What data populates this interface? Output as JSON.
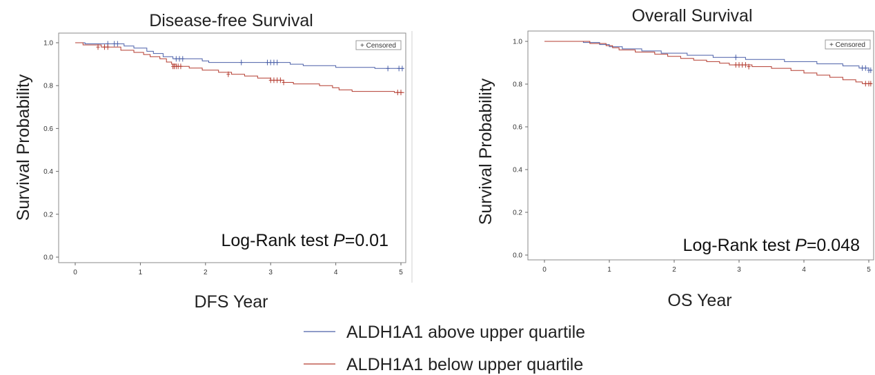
{
  "legend": {
    "entries": [
      {
        "label": "ALDH1A1 above upper quartile",
        "color": "#4a5fa8"
      },
      {
        "label": "ALDH1A1 below upper quartile",
        "color": "#b33a2e"
      }
    ]
  },
  "chart_data": [
    {
      "type": "line",
      "title": "Disease-free Survival",
      "xlabel": "DFS Year",
      "ylabel": "Survival Probability",
      "xlim": [
        0,
        5
      ],
      "ylim": [
        0,
        1
      ],
      "xticks": [
        "0",
        "1",
        "2",
        "3",
        "4",
        "5"
      ],
      "yticks": [
        "0.0",
        "0.2",
        "0.4",
        "0.6",
        "0.8",
        "1.0"
      ],
      "censor_legend": "+ Censored",
      "annotation": {
        "prefix": "Log-Rank test ",
        "p": "P",
        "value": "=0.01"
      },
      "series": [
        {
          "color": "#4a5fa8",
          "steps": [
            [
              0,
              1.0
            ],
            [
              0.15,
              0.995
            ],
            [
              0.75,
              0.985
            ],
            [
              0.9,
              0.975
            ],
            [
              1.1,
              0.96
            ],
            [
              1.2,
              0.95
            ],
            [
              1.35,
              0.935
            ],
            [
              1.5,
              0.925
            ],
            [
              1.95,
              0.915
            ],
            [
              2.05,
              0.908
            ],
            [
              3.3,
              0.9
            ],
            [
              3.5,
              0.893
            ],
            [
              4.0,
              0.885
            ],
            [
              4.6,
              0.88
            ],
            [
              5.05,
              0.88
            ]
          ],
          "censors": [
            [
              0.5,
              0.995
            ],
            [
              0.6,
              0.995
            ],
            [
              0.65,
              0.995
            ],
            [
              1.55,
              0.925
            ],
            [
              1.6,
              0.925
            ],
            [
              1.65,
              0.925
            ],
            [
              2.55,
              0.908
            ],
            [
              2.95,
              0.908
            ],
            [
              3.0,
              0.908
            ],
            [
              3.05,
              0.908
            ],
            [
              3.1,
              0.908
            ],
            [
              4.8,
              0.88
            ],
            [
              4.97,
              0.88
            ],
            [
              5.02,
              0.88
            ]
          ]
        },
        {
          "color": "#b33a2e",
          "steps": [
            [
              0,
              1.0
            ],
            [
              0.12,
              0.99
            ],
            [
              0.4,
              0.98
            ],
            [
              0.7,
              0.965
            ],
            [
              0.9,
              0.955
            ],
            [
              1.05,
              0.945
            ],
            [
              1.15,
              0.935
            ],
            [
              1.3,
              0.925
            ],
            [
              1.4,
              0.91
            ],
            [
              1.48,
              0.9
            ],
            [
              1.55,
              0.89
            ],
            [
              1.75,
              0.882
            ],
            [
              1.95,
              0.872
            ],
            [
              2.2,
              0.862
            ],
            [
              2.4,
              0.853
            ],
            [
              2.6,
              0.845
            ],
            [
              2.8,
              0.835
            ],
            [
              3.0,
              0.825
            ],
            [
              3.2,
              0.815
            ],
            [
              3.35,
              0.808
            ],
            [
              3.75,
              0.8
            ],
            [
              3.95,
              0.79
            ],
            [
              4.05,
              0.78
            ],
            [
              4.25,
              0.773
            ],
            [
              4.9,
              0.768
            ],
            [
              5.05,
              0.768
            ]
          ],
          "censors": [
            [
              0.35,
              0.98
            ],
            [
              0.45,
              0.98
            ],
            [
              0.5,
              0.98
            ],
            [
              1.5,
              0.89
            ],
            [
              1.52,
              0.89
            ],
            [
              1.55,
              0.89
            ],
            [
              1.58,
              0.89
            ],
            [
              1.62,
              0.89
            ],
            [
              2.35,
              0.853
            ],
            [
              3.0,
              0.825
            ],
            [
              3.05,
              0.825
            ],
            [
              3.1,
              0.825
            ],
            [
              3.15,
              0.825
            ],
            [
              3.2,
              0.815
            ],
            [
              4.95,
              0.768
            ],
            [
              5.0,
              0.768
            ]
          ]
        }
      ]
    },
    {
      "type": "line",
      "title": "Overall Survival",
      "xlabel": "OS Year",
      "ylabel": "Survival Probability",
      "xlim": [
        0,
        5
      ],
      "ylim": [
        0,
        1
      ],
      "xticks": [
        "0",
        "1",
        "2",
        "3",
        "4",
        "5"
      ],
      "yticks": [
        "0.0",
        "0.2",
        "0.4",
        "0.6",
        "0.8",
        "1.0"
      ],
      "censor_legend": "+ Censored",
      "annotation": {
        "prefix": "Log-Rank test ",
        "p": "P",
        "value": "=0.048"
      },
      "series": [
        {
          "color": "#4a5fa8",
          "steps": [
            [
              0,
              1.0
            ],
            [
              0.6,
              0.995
            ],
            [
              0.85,
              0.985
            ],
            [
              1.0,
              0.975
            ],
            [
              1.2,
              0.965
            ],
            [
              1.5,
              0.955
            ],
            [
              1.8,
              0.945
            ],
            [
              2.2,
              0.935
            ],
            [
              2.6,
              0.925
            ],
            [
              3.1,
              0.915
            ],
            [
              3.7,
              0.905
            ],
            [
              4.2,
              0.895
            ],
            [
              4.6,
              0.885
            ],
            [
              4.85,
              0.875
            ],
            [
              5.0,
              0.865
            ],
            [
              5.05,
              0.865
            ]
          ],
          "censors": [
            [
              2.95,
              0.925
            ],
            [
              4.9,
              0.875
            ],
            [
              4.95,
              0.875
            ],
            [
              5.0,
              0.865
            ],
            [
              5.03,
              0.865
            ]
          ]
        },
        {
          "color": "#b33a2e",
          "steps": [
            [
              0,
              1.0
            ],
            [
              0.7,
              0.99
            ],
            [
              0.95,
              0.98
            ],
            [
              1.05,
              0.97
            ],
            [
              1.15,
              0.96
            ],
            [
              1.4,
              0.95
            ],
            [
              1.7,
              0.94
            ],
            [
              1.9,
              0.93
            ],
            [
              2.1,
              0.92
            ],
            [
              2.3,
              0.912
            ],
            [
              2.5,
              0.905
            ],
            [
              2.7,
              0.898
            ],
            [
              2.85,
              0.89
            ],
            [
              3.2,
              0.882
            ],
            [
              3.5,
              0.874
            ],
            [
              3.8,
              0.864
            ],
            [
              4.0,
              0.852
            ],
            [
              4.2,
              0.842
            ],
            [
              4.4,
              0.832
            ],
            [
              4.6,
              0.82
            ],
            [
              4.8,
              0.81
            ],
            [
              4.9,
              0.802
            ],
            [
              5.05,
              0.802
            ]
          ],
          "censors": [
            [
              2.95,
              0.89
            ],
            [
              3.0,
              0.89
            ],
            [
              3.05,
              0.89
            ],
            [
              3.1,
              0.89
            ],
            [
              3.15,
              0.882
            ],
            [
              4.95,
              0.802
            ],
            [
              5.0,
              0.802
            ],
            [
              5.03,
              0.802
            ]
          ]
        }
      ]
    }
  ]
}
